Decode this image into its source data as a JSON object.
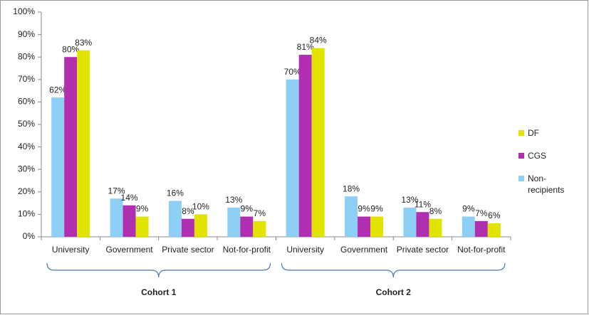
{
  "chart_data": {
    "type": "bar",
    "categories": [
      "University",
      "Government",
      "Private sector",
      "Not-for-profit",
      "University",
      "Government",
      "Private sector",
      "Not-for-profit"
    ],
    "groups": [
      "Cohort 1",
      "Cohort 2"
    ],
    "series": [
      {
        "name": "Non-recipients",
        "color": "#8ecff5",
        "values": [
          62,
          17,
          16,
          13,
          70,
          18,
          13,
          9
        ],
        "value_labels": [
          "62%",
          "17%",
          "16%",
          "13%",
          "70%",
          "18%",
          "13%",
          "9%"
        ]
      },
      {
        "name": "CGS",
        "color": "#b02fb0",
        "values": [
          80,
          14,
          8,
          9,
          81,
          9,
          11,
          7
        ],
        "value_labels": [
          "80%",
          "14%",
          "8%",
          "9%",
          "81%",
          "9%",
          "11%",
          "7%"
        ]
      },
      {
        "name": "DF",
        "color": "#e3e300",
        "values": [
          83,
          9,
          10,
          7,
          84,
          9,
          8,
          6
        ],
        "value_labels": [
          "83%",
          "9%",
          "10%",
          "7%",
          "84%",
          "9%",
          "8%",
          "6%"
        ]
      }
    ],
    "ylim": [
      0,
      100
    ],
    "yticks": [
      {
        "value": 0,
        "label": "0%"
      },
      {
        "value": 10,
        "label": "10%"
      },
      {
        "value": 20,
        "label": "20%"
      },
      {
        "value": 30,
        "label": "30%"
      },
      {
        "value": 40,
        "label": "40%"
      },
      {
        "value": 50,
        "label": "50%"
      },
      {
        "value": 60,
        "label": "60%"
      },
      {
        "value": 70,
        "label": "70%"
      },
      {
        "value": 80,
        "label": "80%"
      },
      {
        "value": 90,
        "label": "90%"
      },
      {
        "value": 100,
        "label": "100%"
      }
    ],
    "legend": "right"
  }
}
